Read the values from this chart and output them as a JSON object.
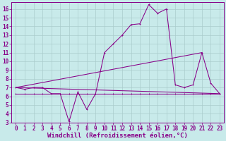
{
  "xlabel": "Windchill (Refroidissement éolien,°C)",
  "ylabel": "",
  "bg_color": "#c8eaea",
  "line_color": "#880088",
  "grid_color": "#aacccc",
  "xlim": [
    -0.5,
    23.5
  ],
  "ylim": [
    3,
    16.8
  ],
  "xticks": [
    0,
    1,
    2,
    3,
    4,
    5,
    6,
    7,
    8,
    9,
    10,
    11,
    12,
    13,
    14,
    15,
    16,
    17,
    18,
    19,
    20,
    21,
    22,
    23
  ],
  "yticks": [
    3,
    4,
    5,
    6,
    7,
    8,
    9,
    10,
    11,
    12,
    13,
    14,
    15,
    16
  ],
  "series1_x": [
    0,
    1,
    2,
    3,
    4,
    5,
    6,
    7,
    8,
    9,
    10,
    11,
    12,
    13,
    14,
    15,
    16,
    17,
    18,
    19,
    20,
    21,
    22,
    23
  ],
  "series1_y": [
    7.0,
    6.8,
    7.0,
    7.0,
    6.3,
    6.3,
    3.1,
    6.5,
    4.5,
    6.3,
    11.0,
    12.0,
    13.0,
    14.2,
    14.3,
    16.5,
    15.5,
    16.0,
    7.3,
    7.0,
    7.3,
    11.0,
    7.5,
    6.3
  ],
  "series2_x": [
    0,
    1,
    2,
    3,
    4,
    5,
    6,
    7,
    8,
    9,
    10,
    11,
    12,
    13,
    14,
    15,
    16,
    17,
    18,
    19,
    20,
    21,
    22,
    23
  ],
  "series2_y": [
    6.3,
    6.3,
    6.3,
    6.3,
    6.3,
    6.3,
    6.3,
    6.3,
    6.3,
    6.3,
    6.3,
    6.3,
    6.3,
    6.3,
    6.3,
    6.3,
    6.3,
    6.3,
    6.3,
    6.3,
    6.3,
    6.3,
    6.3,
    6.3
  ],
  "series3_x": [
    0,
    23
  ],
  "series3_y": [
    7.0,
    6.3
  ],
  "series4_x": [
    0,
    21
  ],
  "series4_y": [
    7.0,
    11.0
  ],
  "font_size": 6,
  "tick_font_size": 5.5,
  "xlabel_fontsize": 6.5
}
